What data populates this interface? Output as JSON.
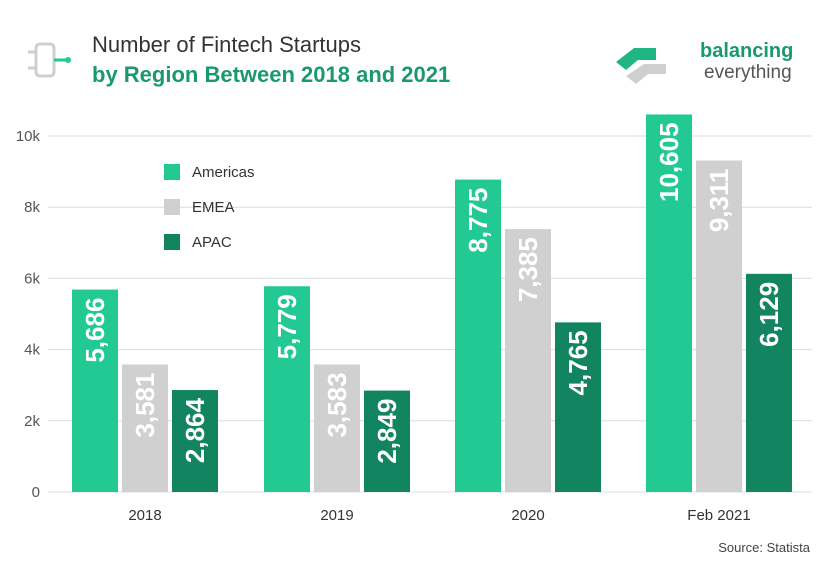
{
  "header": {
    "title_line1": "Number of Fintech Startups",
    "title_line2": "by Region Between 2018 and 2021"
  },
  "brand": {
    "line1": "balancing",
    "line2": "everything"
  },
  "source": "Source: Statista",
  "colors": {
    "americas": "#22c993",
    "emea": "#d0d0d0",
    "apac": "#128460",
    "accent": "#1a9a6c"
  },
  "chart_data": {
    "type": "bar",
    "categories": [
      "2018",
      "2019",
      "2020",
      "Feb 2021"
    ],
    "series": [
      {
        "name": "Americas",
        "values": [
          5686,
          5779,
          8775,
          10605
        ],
        "labels": [
          "5,686",
          "5,779",
          "8,775",
          "10,605"
        ]
      },
      {
        "name": "EMEA",
        "values": [
          3581,
          3583,
          7385,
          9311
        ],
        "labels": [
          "3,581",
          "3,583",
          "7,385",
          "9,311"
        ]
      },
      {
        "name": "APAC",
        "values": [
          2864,
          2849,
          4765,
          6129
        ],
        "labels": [
          "2,864",
          "2,849",
          "4,765",
          "6,129"
        ]
      }
    ],
    "ylim": [
      0,
      10000
    ],
    "yticks": [
      0,
      2000,
      4000,
      6000,
      8000,
      10000
    ],
    "ytick_labels": [
      "0",
      "2k",
      "4k",
      "6k",
      "8k",
      "10k"
    ],
    "grid": true,
    "legend": "top-left",
    "xlabel": "",
    "ylabel": ""
  }
}
